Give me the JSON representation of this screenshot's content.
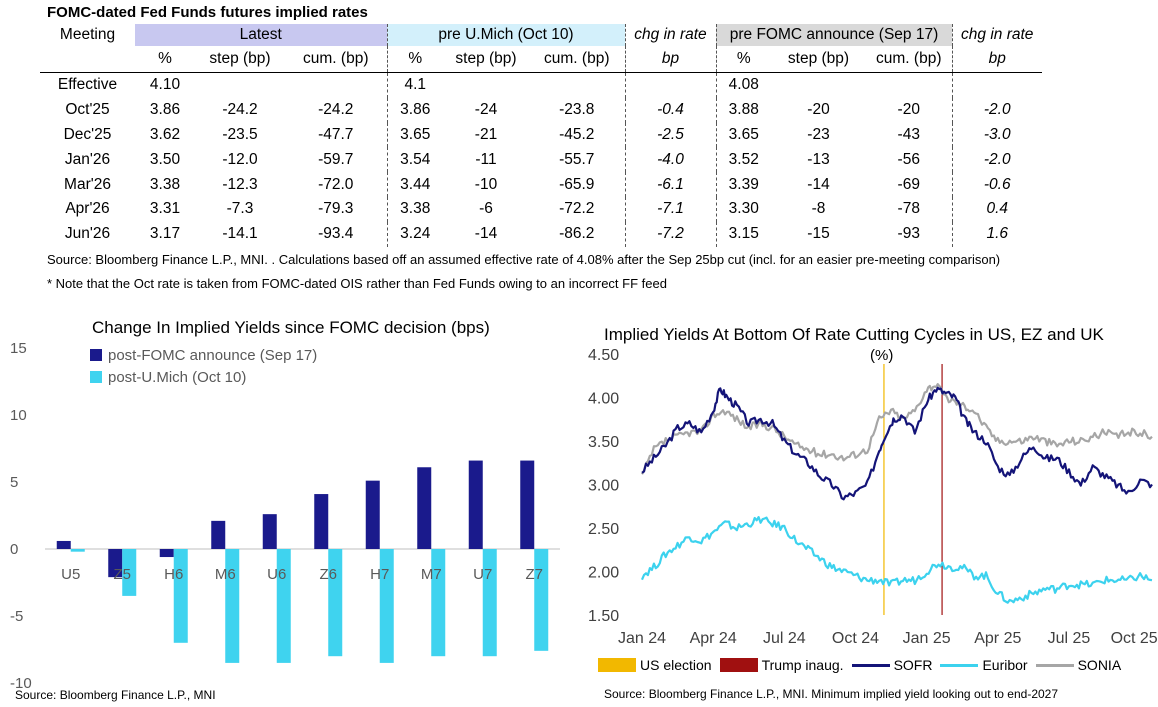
{
  "table": {
    "title": "FOMC-dated Fed Funds futures implied rates",
    "headers": {
      "meeting": "Meeting",
      "latest": "Latest",
      "pre_umich": "pre U.Mich (Oct 10)",
      "chg1": "chg in rate",
      "pre_fomc": "pre FOMC announce (Sep 17)",
      "chg2": "chg in rate"
    },
    "subheaders": {
      "pct": "%",
      "step": "step (bp)",
      "cum": "cum. (bp)",
      "bp": "bp"
    },
    "rows": [
      {
        "meeting": "Effective",
        "l_pct": "4.10",
        "l_step": "",
        "l_cum": "",
        "p_pct": "4.1",
        "p_step": "",
        "p_cum": "",
        "chg1": "",
        "f_pct": "4.08",
        "f_step": "",
        "f_cum": "",
        "chg2": ""
      },
      {
        "meeting": "Oct'25",
        "l_pct": "3.86",
        "l_step": "-24.2",
        "l_cum": "-24.2",
        "p_pct": "3.86",
        "p_step": "-24",
        "p_cum": "-23.8",
        "chg1": "-0.4",
        "f_pct": "3.88",
        "f_step": "-20",
        "f_cum": "-20",
        "chg2": "-2.0"
      },
      {
        "meeting": "Dec'25",
        "l_pct": "3.62",
        "l_step": "-23.5",
        "l_cum": "-47.7",
        "p_pct": "3.65",
        "p_step": "-21",
        "p_cum": "-45.2",
        "chg1": "-2.5",
        "f_pct": "3.65",
        "f_step": "-23",
        "f_cum": "-43",
        "chg2": "-3.0"
      },
      {
        "meeting": "Jan'26",
        "l_pct": "3.50",
        "l_step": "-12.0",
        "l_cum": "-59.7",
        "p_pct": "3.54",
        "p_step": "-11",
        "p_cum": "-55.7",
        "chg1": "-4.0",
        "f_pct": "3.52",
        "f_step": "-13",
        "f_cum": "-56",
        "chg2": "-2.0"
      },
      {
        "meeting": "Mar'26",
        "l_pct": "3.38",
        "l_step": "-12.3",
        "l_cum": "-72.0",
        "p_pct": "3.44",
        "p_step": "-10",
        "p_cum": "-65.9",
        "chg1": "-6.1",
        "f_pct": "3.39",
        "f_step": "-14",
        "f_cum": "-69",
        "chg2": "-0.6"
      },
      {
        "meeting": "Apr'26",
        "l_pct": "3.31",
        "l_step": "-7.3",
        "l_cum": "-79.3",
        "p_pct": "3.38",
        "p_step": "-6",
        "p_cum": "-72.2",
        "chg1": "-7.1",
        "f_pct": "3.30",
        "f_step": "-8",
        "f_cum": "-78",
        "chg2": "0.4"
      },
      {
        "meeting": "Jun'26",
        "l_pct": "3.17",
        "l_step": "-14.1",
        "l_cum": "-93.4",
        "p_pct": "3.24",
        "p_step": "-14",
        "p_cum": "-86.2",
        "chg1": "-7.2",
        "f_pct": "3.15",
        "f_step": "-15",
        "f_cum": "-93",
        "chg2": "1.6"
      }
    ],
    "source": "Source: Bloomberg Finance L.P., MNI. . Calculations based off an assumed effective rate of 4.08% after the Sep 25bp cut (incl. for an easier pre-meeting comparison)",
    "note": "* Note that the Oct rate is taken from FOMC-dated OIS rather than Fed Funds owing to an incorrect FF feed"
  },
  "chart_data": [
    {
      "type": "bar",
      "title": "Change In Implied Yields since FOMC decision (bps)",
      "categories": [
        "U5",
        "Z5",
        "H6",
        "M6",
        "U6",
        "Z6",
        "H7",
        "M7",
        "U7",
        "Z7"
      ],
      "series": [
        {
          "name": "post-FOMC announce (Sep 17)",
          "color": "#1a1a8c",
          "values": [
            0.6,
            -2.1,
            -0.6,
            2.1,
            2.6,
            4.1,
            5.1,
            6.1,
            6.6,
            6.6
          ]
        },
        {
          "name": "post-U.Mich (Oct 10)",
          "color": "#3fd3ef",
          "values": [
            -0.2,
            -3.5,
            -7.0,
            -8.5,
            -8.5,
            -8.0,
            -8.5,
            -8.0,
            -8.0,
            -7.6
          ]
        }
      ],
      "yticks": [
        "15",
        "10",
        "5",
        "0",
        "-5",
        "-10"
      ],
      "ylim": [
        -10,
        15
      ],
      "source": "Source: Bloomberg Finance L.P., MNI"
    },
    {
      "type": "line",
      "title": "Implied Yields At Bottom Of Rate Cutting Cycles in US, EZ and UK",
      "unit_label": "(%)",
      "ylim": [
        1.5,
        4.5
      ],
      "yticks": [
        "4.50",
        "4.00",
        "3.50",
        "3.00",
        "2.50",
        "2.00",
        "1.50"
      ],
      "xticks": [
        "Jan 24",
        "Apr 24",
        "Jul 24",
        "Oct 24",
        "Jan 25",
        "Apr 25",
        "Jul 25",
        "Oct 25"
      ],
      "x_range_months": [
        0,
        21.5
      ],
      "vlines": [
        {
          "name": "US election",
          "month": 10.2,
          "color": "#f2b800"
        },
        {
          "name": "Trump inaug.",
          "month": 12.65,
          "color": "#a01010"
        }
      ],
      "series": [
        {
          "name": "SOFR",
          "color": "#141478",
          "points": [
            [
              0,
              3.15
            ],
            [
              0.5,
              3.3
            ],
            [
              1,
              3.45
            ],
            [
              1.5,
              3.65
            ],
            [
              2,
              3.7
            ],
            [
              2.5,
              3.6
            ],
            [
              3,
              3.85
            ],
            [
              3.3,
              4.1
            ],
            [
              3.6,
              4.0
            ],
            [
              4,
              3.9
            ],
            [
              4.5,
              3.7
            ],
            [
              5,
              3.75
            ],
            [
              5.5,
              3.7
            ],
            [
              6,
              3.5
            ],
            [
              6.5,
              3.35
            ],
            [
              7,
              3.25
            ],
            [
              7.5,
              3.1
            ],
            [
              8,
              3.0
            ],
            [
              8.5,
              2.85
            ],
            [
              9,
              2.9
            ],
            [
              9.5,
              3.0
            ],
            [
              10,
              3.4
            ],
            [
              10.3,
              3.6
            ],
            [
              10.6,
              3.75
            ],
            [
              11,
              3.8
            ],
            [
              11.5,
              3.6
            ],
            [
              12,
              3.95
            ],
            [
              12.4,
              4.1
            ],
            [
              12.8,
              4.05
            ],
            [
              13.2,
              4.0
            ],
            [
              13.6,
              3.75
            ],
            [
              14,
              3.6
            ],
            [
              14.5,
              3.5
            ],
            [
              15,
              3.2
            ],
            [
              15.5,
              3.1
            ],
            [
              16,
              3.3
            ],
            [
              16.5,
              3.45
            ],
            [
              17,
              3.3
            ],
            [
              17.5,
              3.3
            ],
            [
              18,
              3.15
            ],
            [
              18.5,
              3.0
            ],
            [
              19,
              3.2
            ],
            [
              19.5,
              3.1
            ],
            [
              20,
              3.0
            ],
            [
              20.5,
              2.9
            ],
            [
              21,
              3.05
            ],
            [
              21.5,
              3.0
            ]
          ]
        },
        {
          "name": "Euribor",
          "color": "#3cd2ee",
          "points": [
            [
              0,
              1.95
            ],
            [
              0.5,
              2.05
            ],
            [
              1,
              2.2
            ],
            [
              1.5,
              2.3
            ],
            [
              2,
              2.4
            ],
            [
              2.5,
              2.35
            ],
            [
              3,
              2.45
            ],
            [
              3.5,
              2.55
            ],
            [
              4,
              2.5
            ],
            [
              4.5,
              2.55
            ],
            [
              5,
              2.6
            ],
            [
              5.5,
              2.55
            ],
            [
              6,
              2.5
            ],
            [
              6.5,
              2.35
            ],
            [
              7,
              2.25
            ],
            [
              7.5,
              2.15
            ],
            [
              8,
              2.05
            ],
            [
              8.5,
              2.0
            ],
            [
              9,
              1.95
            ],
            [
              9.5,
              1.9
            ],
            [
              10,
              1.9
            ],
            [
              10.5,
              1.85
            ],
            [
              11,
              1.9
            ],
            [
              11.5,
              1.9
            ],
            [
              12,
              2.0
            ],
            [
              12.5,
              2.1
            ],
            [
              13,
              2.05
            ],
            [
              13.5,
              2.05
            ],
            [
              14,
              1.95
            ],
            [
              14.5,
              1.95
            ],
            [
              15,
              1.75
            ],
            [
              15.5,
              1.65
            ],
            [
              16,
              1.7
            ],
            [
              16.5,
              1.75
            ],
            [
              17,
              1.8
            ],
            [
              17.5,
              1.8
            ],
            [
              18,
              1.85
            ],
            [
              18.5,
              1.85
            ],
            [
              19,
              1.85
            ],
            [
              19.5,
              1.9
            ],
            [
              20,
              1.9
            ],
            [
              20.5,
              1.9
            ],
            [
              21,
              1.95
            ],
            [
              21.5,
              1.9
            ]
          ]
        },
        {
          "name": "SONIA",
          "color": "#a6a6a6",
          "points": [
            [
              0,
              3.1
            ],
            [
              0.5,
              3.4
            ],
            [
              1,
              3.5
            ],
            [
              1.5,
              3.55
            ],
            [
              2,
              3.6
            ],
            [
              2.5,
              3.6
            ],
            [
              3,
              3.8
            ],
            [
              3.5,
              3.85
            ],
            [
              4,
              3.75
            ],
            [
              4.5,
              3.65
            ],
            [
              5,
              3.7
            ],
            [
              5.5,
              3.65
            ],
            [
              6,
              3.55
            ],
            [
              6.5,
              3.45
            ],
            [
              7,
              3.4
            ],
            [
              7.5,
              3.35
            ],
            [
              8,
              3.35
            ],
            [
              8.5,
              3.3
            ],
            [
              9,
              3.35
            ],
            [
              9.5,
              3.4
            ],
            [
              10,
              3.75
            ],
            [
              10.5,
              3.85
            ],
            [
              11,
              3.75
            ],
            [
              11.5,
              3.85
            ],
            [
              12,
              4.1
            ],
            [
              12.4,
              4.15
            ],
            [
              12.8,
              4.0
            ],
            [
              13.2,
              3.95
            ],
            [
              13.6,
              3.9
            ],
            [
              14,
              3.85
            ],
            [
              14.5,
              3.65
            ],
            [
              15,
              3.5
            ],
            [
              15.5,
              3.5
            ],
            [
              16,
              3.5
            ],
            [
              16.5,
              3.55
            ],
            [
              17,
              3.5
            ],
            [
              17.5,
              3.45
            ],
            [
              18,
              3.5
            ],
            [
              18.5,
              3.5
            ],
            [
              19,
              3.55
            ],
            [
              19.5,
              3.6
            ],
            [
              20,
              3.55
            ],
            [
              20.5,
              3.6
            ],
            [
              21,
              3.6
            ],
            [
              21.5,
              3.55
            ]
          ]
        }
      ],
      "source": "Source: Bloomberg Finance L.P., MNI. Minimum implied yield looking out to end-2027"
    }
  ]
}
